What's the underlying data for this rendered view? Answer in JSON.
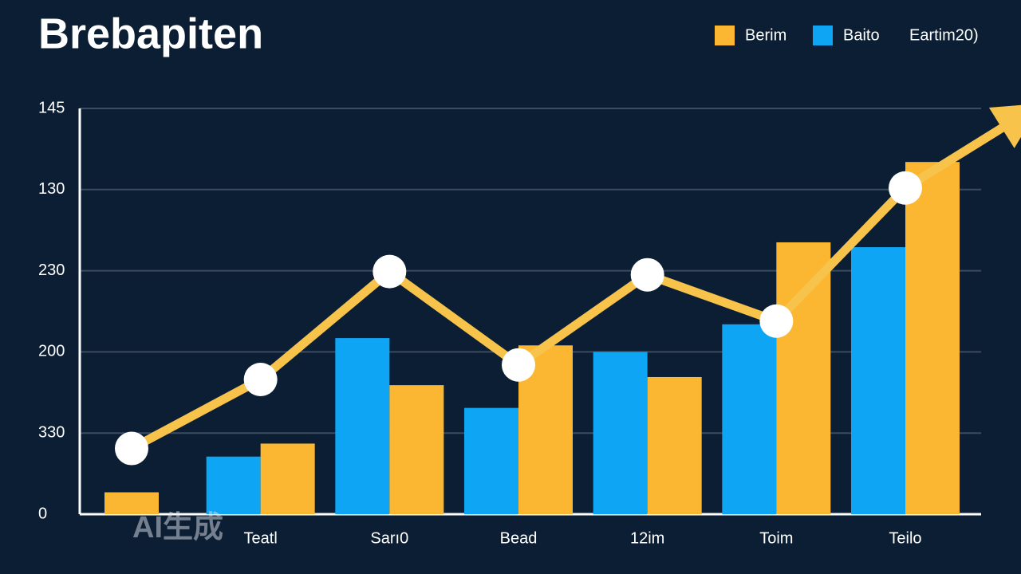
{
  "chart_data": {
    "type": "bar-line",
    "title": "Brebapiten",
    "watermark": "AI生成",
    "categories": [
      null,
      "Teatl",
      "Sarı0",
      "Bead",
      "12im",
      "Toim",
      "Teilo"
    ],
    "series": [
      {
        "name": "Berim",
        "color": "#fbb731",
        "kind": "bar",
        "values": [
          0.27,
          0.87,
          1.59,
          2.08,
          1.69,
          3.35,
          4.34
        ]
      },
      {
        "name": "Baito",
        "color": "#0ea5f5",
        "kind": "bar",
        "values": [
          null,
          0.71,
          2.17,
          1.31,
          2.0,
          2.34,
          3.29
        ]
      },
      {
        "name": "Eartim20)",
        "color": "#f7c34a",
        "kind": "line",
        "values": [
          0.81,
          1.66,
          2.99,
          1.84,
          2.95,
          2.38,
          4.02
        ]
      }
    ],
    "ylim": [
      0,
      5
    ],
    "yticks": [
      0,
      {
        "value": 1,
        "label": "330"
      },
      {
        "value": 2,
        "label": "200"
      },
      {
        "value": 3,
        "label": "230"
      },
      {
        "value": 4,
        "label": "130"
      },
      {
        "value": 5,
        "label": "145"
      }
    ],
    "grid": true,
    "legend": "top-right"
  }
}
